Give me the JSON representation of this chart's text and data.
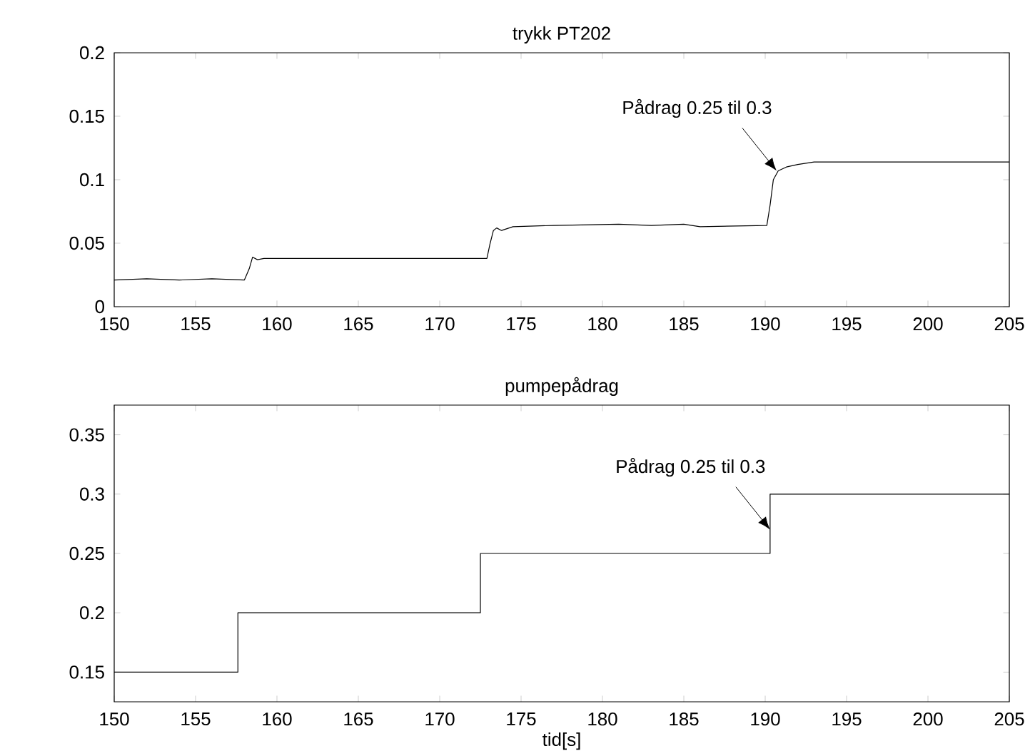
{
  "chart_data": [
    {
      "type": "line",
      "title": "trykk PT202",
      "xlim": [
        150,
        205
      ],
      "ylim": [
        0,
        0.2
      ],
      "xticks": [
        150,
        155,
        160,
        165,
        170,
        175,
        180,
        185,
        190,
        195,
        200,
        205
      ],
      "yticks": [
        0,
        0.05,
        0.1,
        0.15,
        0.2
      ],
      "color": "#000000",
      "x": [
        150,
        152,
        154,
        156,
        158,
        158.3,
        158.5,
        158.8,
        159.2,
        165,
        170,
        172.9,
        173.1,
        173.3,
        173.5,
        173.8,
        174.5,
        177,
        181,
        183,
        185,
        186,
        190.1,
        190.3,
        190.5,
        190.8,
        191.3,
        192,
        193,
        195,
        200,
        205
      ],
      "values": [
        0.021,
        0.022,
        0.021,
        0.022,
        0.021,
        0.03,
        0.039,
        0.037,
        0.038,
        0.038,
        0.038,
        0.038,
        0.05,
        0.06,
        0.062,
        0.06,
        0.063,
        0.064,
        0.065,
        0.064,
        0.065,
        0.063,
        0.064,
        0.08,
        0.1,
        0.107,
        0.11,
        0.112,
        0.114,
        0.114,
        0.114,
        0.114
      ],
      "annotations": [
        {
          "text": "Pådrag 0.25 til 0.3",
          "x": 190.7,
          "y": 0.107
        }
      ]
    },
    {
      "type": "step",
      "title": "pumpepådrag",
      "xlabel": "tid[s]",
      "xlim": [
        150,
        205
      ],
      "ylim": [
        0.125,
        0.375
      ],
      "xticks": [
        150,
        155,
        160,
        165,
        170,
        175,
        180,
        185,
        190,
        195,
        200,
        205
      ],
      "yticks": [
        0.15,
        0.2,
        0.25,
        0.3,
        0.35
      ],
      "color": "#000000",
      "x": [
        150,
        157.6,
        172.5,
        190.3,
        205
      ],
      "values": [
        0.15,
        0.2,
        0.25,
        0.3,
        0.3
      ],
      "annotations": [
        {
          "text": "Pådrag 0.25 til 0.3",
          "x": 190.3,
          "y": 0.27
        }
      ]
    }
  ]
}
